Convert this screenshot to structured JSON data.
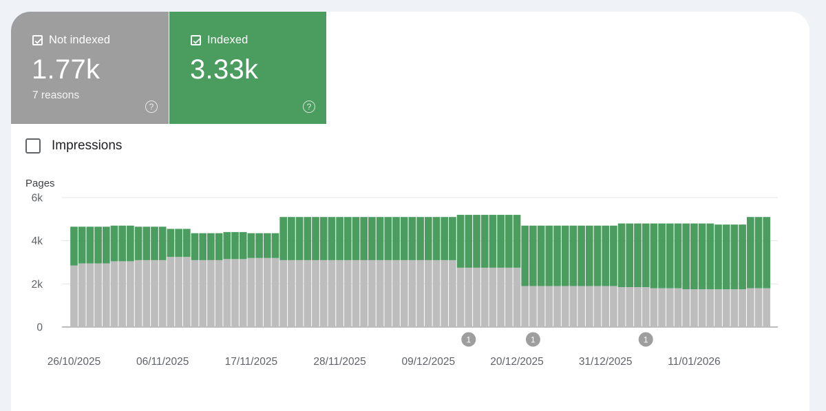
{
  "tiles": {
    "not_indexed": {
      "label": "Not indexed",
      "value": "1.77k",
      "sub": "7 reasons",
      "color": "#9e9e9e"
    },
    "indexed": {
      "label": "Indexed",
      "value": "3.33k",
      "color": "#4a9d5f"
    }
  },
  "impressions": {
    "label": "Impressions",
    "checked": false
  },
  "chart_data": {
    "type": "bar",
    "stacked": true,
    "ylabel": "Pages",
    "ylim": [
      0,
      6000
    ],
    "yticks": [
      {
        "value": 0,
        "label": "0"
      },
      {
        "value": 2000,
        "label": "2k"
      },
      {
        "value": 4000,
        "label": "4k"
      },
      {
        "value": 6000,
        "label": "6k"
      }
    ],
    "x_start": "26/10/2025",
    "x_end": "21/01/2026",
    "xtick_labels": [
      "26/10/2025",
      "06/11/2025",
      "17/11/2025",
      "28/11/2025",
      "09/12/2025",
      "20/12/2025",
      "31/12/2025",
      "11/01/2026"
    ],
    "grid": true,
    "series": [
      {
        "name": "Not indexed",
        "color": "#bdbdbd",
        "values": [
          2850,
          2950,
          2950,
          2950,
          2950,
          3050,
          3050,
          3050,
          3100,
          3100,
          3100,
          3100,
          3250,
          3250,
          3250,
          3100,
          3100,
          3100,
          3100,
          3150,
          3150,
          3150,
          3200,
          3200,
          3200,
          3200,
          3100,
          3100,
          3100,
          3100,
          3100,
          3100,
          3100,
          3100,
          3100,
          3100,
          3100,
          3100,
          3100,
          3100,
          3100,
          3100,
          3100,
          3100,
          3100,
          3100,
          3100,
          3100,
          2750,
          2750,
          2750,
          2750,
          2750,
          2750,
          2750,
          2750,
          1900,
          1900,
          1900,
          1900,
          1900,
          1900,
          1900,
          1900,
          1900,
          1900,
          1900,
          1900,
          1850,
          1850,
          1850,
          1850,
          1800,
          1800,
          1800,
          1800,
          1750,
          1750,
          1750,
          1750,
          1750,
          1750,
          1750,
          1750,
          1800,
          1800,
          1800
        ]
      },
      {
        "name": "Indexed",
        "color": "#4a9d5f",
        "values": [
          1800,
          1700,
          1700,
          1700,
          1700,
          1650,
          1650,
          1650,
          1550,
          1550,
          1550,
          1550,
          1300,
          1300,
          1300,
          1250,
          1250,
          1250,
          1250,
          1250,
          1250,
          1250,
          1150,
          1150,
          1150,
          1150,
          2000,
          2000,
          2000,
          2000,
          2000,
          2000,
          2000,
          2000,
          2000,
          2000,
          2000,
          2000,
          2000,
          2000,
          2000,
          2000,
          2000,
          2000,
          2000,
          2000,
          2000,
          2000,
          2450,
          2450,
          2450,
          2450,
          2450,
          2450,
          2450,
          2450,
          2800,
          2800,
          2800,
          2800,
          2800,
          2800,
          2800,
          2800,
          2800,
          2800,
          2800,
          2800,
          2950,
          2950,
          2950,
          2950,
          3000,
          3000,
          3000,
          3000,
          3050,
          3050,
          3050,
          3050,
          3000,
          3000,
          3000,
          3000,
          3300,
          3300,
          3300
        ]
      }
    ],
    "annotations": [
      {
        "date": "14/12/2025",
        "label": "1"
      },
      {
        "date": "22/12/2025",
        "label": "1"
      },
      {
        "date": "05/01/2026",
        "label": "1"
      }
    ]
  }
}
